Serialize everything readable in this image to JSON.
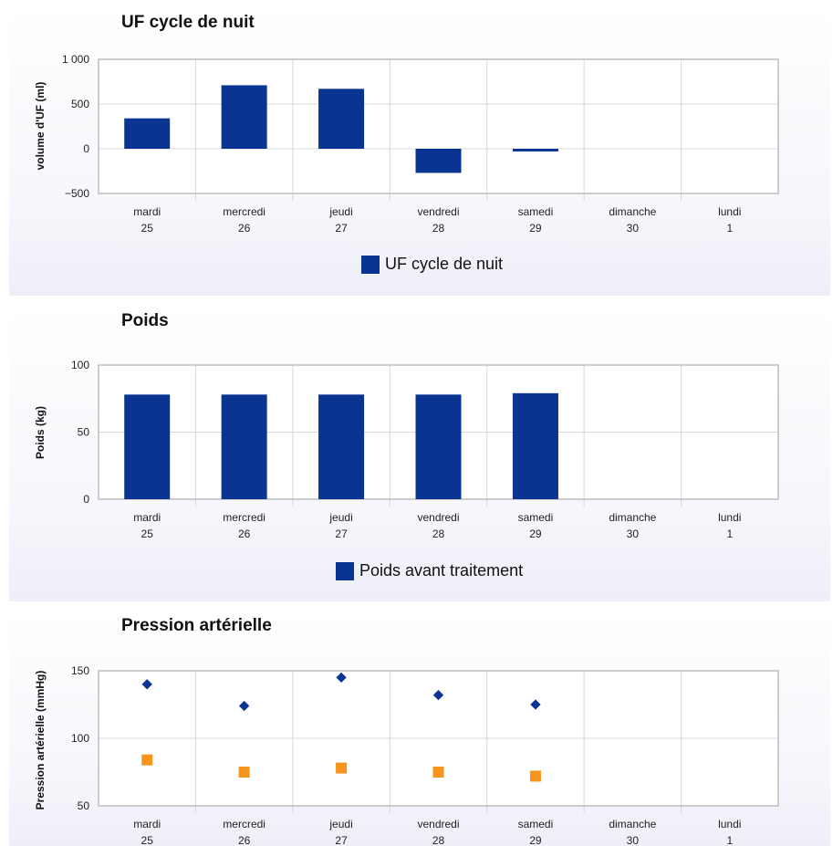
{
  "colors": {
    "bar": "#0a3491",
    "systolic": "#0a3491",
    "diastolic": "#f7941d",
    "grid": "#d8d8d8",
    "border": "#bdbdbd"
  },
  "chart_data": [
    {
      "type": "bar",
      "title": "UF cycle de nuit",
      "ylabel": "volume d'UF (ml)",
      "ylim": [
        -500,
        1000
      ],
      "yticks": [
        "1 000",
        "500",
        "0",
        "−500"
      ],
      "ytick_values": [
        1000,
        500,
        0,
        -500
      ],
      "categories": [
        [
          "mardi",
          "25"
        ],
        [
          "mercredi",
          "26"
        ],
        [
          "jeudi",
          "27"
        ],
        [
          "vendredi",
          "28"
        ],
        [
          "samedi",
          "29"
        ],
        [
          "dimanche",
          "30"
        ],
        [
          "lundi",
          "1"
        ]
      ],
      "series": [
        {
          "name": "UF cycle de nuit",
          "values": [
            340,
            710,
            670,
            -270,
            -30,
            null,
            null
          ]
        }
      ],
      "legend": "bottom-center"
    },
    {
      "type": "bar",
      "title": "Poids",
      "ylabel": "Poids (kg)",
      "ylim": [
        0,
        100
      ],
      "yticks": [
        "100",
        "50",
        "0"
      ],
      "ytick_values": [
        100,
        50,
        0
      ],
      "categories": [
        [
          "mardi",
          "25"
        ],
        [
          "mercredi",
          "26"
        ],
        [
          "jeudi",
          "27"
        ],
        [
          "vendredi",
          "28"
        ],
        [
          "samedi",
          "29"
        ],
        [
          "dimanche",
          "30"
        ],
        [
          "lundi",
          "1"
        ]
      ],
      "series": [
        {
          "name": "Poids avant traitement",
          "values": [
            78,
            78,
            78,
            78,
            79,
            null,
            null
          ]
        }
      ],
      "legend": "bottom-center"
    },
    {
      "type": "scatter",
      "title": "Pression artérielle",
      "ylabel": "Pression artérielle (mmHg)",
      "ylim": [
        50,
        150
      ],
      "yticks": [
        "150",
        "100",
        "50"
      ],
      "ytick_values": [
        150,
        100,
        50
      ],
      "categories": [
        [
          "mardi",
          "25"
        ],
        [
          "mercredi",
          "26"
        ],
        [
          "jeudi",
          "27"
        ],
        [
          "vendredi",
          "28"
        ],
        [
          "samedi",
          "29"
        ],
        [
          "dimanche",
          "30"
        ],
        [
          "lundi",
          "1"
        ]
      ],
      "series": [
        {
          "values": [
            140,
            124,
            145,
            132,
            125,
            null,
            null
          ]
        },
        {
          "values": [
            84,
            75,
            78,
            75,
            72,
            null,
            null
          ]
        }
      ]
    }
  ]
}
